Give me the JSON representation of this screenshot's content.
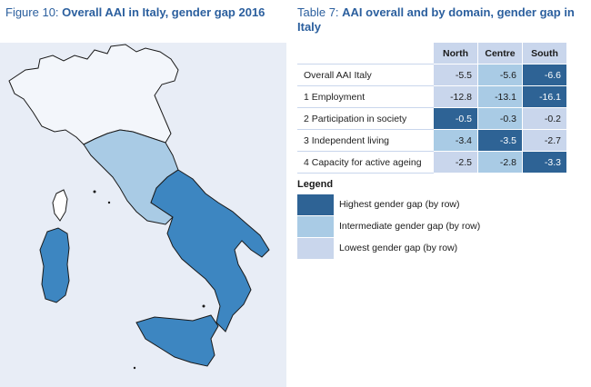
{
  "figure": {
    "prefix": "Figure 10: ",
    "title": "Overall AAI in Italy, gender gap 2016"
  },
  "table": {
    "prefix": "Table 7: ",
    "title": "AAI overall and by domain, gender gap in Italy",
    "columns": [
      "North",
      "Centre",
      "South"
    ],
    "rows": [
      {
        "label": "Overall AAI Italy",
        "cells": [
          {
            "value": "-5.5",
            "level": "low"
          },
          {
            "value": "-5.6",
            "level": "mid"
          },
          {
            "value": "-6.6",
            "level": "high"
          }
        ]
      },
      {
        "label": "1 Employment",
        "cells": [
          {
            "value": "-12.8",
            "level": "low"
          },
          {
            "value": "-13.1",
            "level": "mid"
          },
          {
            "value": "-16.1",
            "level": "high"
          }
        ]
      },
      {
        "label": "2 Participation in society",
        "cells": [
          {
            "value": "-0.5",
            "level": "high"
          },
          {
            "value": "-0.3",
            "level": "mid"
          },
          {
            "value": "-0.2",
            "level": "low"
          }
        ]
      },
      {
        "label": "3 Independent living",
        "cells": [
          {
            "value": "-3.4",
            "level": "mid"
          },
          {
            "value": "-3.5",
            "level": "high"
          },
          {
            "value": "-2.7",
            "level": "low"
          }
        ]
      },
      {
        "label": "4 Capacity for active ageing",
        "cells": [
          {
            "value": "-2.5",
            "level": "low"
          },
          {
            "value": "-2.8",
            "level": "mid"
          },
          {
            "value": "-3.3",
            "level": "high"
          }
        ]
      }
    ]
  },
  "legend": {
    "title": "Legend",
    "items": [
      {
        "label": "Highest gender gap (by row)",
        "color": "#2e6395"
      },
      {
        "label": "Intermediate gender gap (by row)",
        "color": "#a9cbe5"
      },
      {
        "label": "Lowest gender gap (by row)",
        "color": "#c9d6ec"
      }
    ]
  },
  "map": {
    "regions": [
      {
        "name": "North",
        "color": "#f3f6fb"
      },
      {
        "name": "Centre",
        "color": "#a9cbe5"
      },
      {
        "name": "South",
        "color": "#3d86c1"
      }
    ]
  },
  "chart_data": {
    "type": "table",
    "title": "AAI overall and by domain, gender gap in Italy",
    "categories": [
      "North",
      "Centre",
      "South"
    ],
    "series": [
      {
        "name": "Overall AAI Italy",
        "values": [
          -5.5,
          -5.6,
          -6.6
        ]
      },
      {
        "name": "1 Employment",
        "values": [
          -12.8,
          -13.1,
          -16.1
        ]
      },
      {
        "name": "2 Participation in society",
        "values": [
          -0.5,
          -0.3,
          -0.2
        ]
      },
      {
        "name": "3 Independent living",
        "values": [
          -3.4,
          -3.5,
          -2.7
        ]
      },
      {
        "name": "4 Capacity for active ageing",
        "values": [
          -2.5,
          -2.8,
          -3.3
        ]
      }
    ]
  }
}
